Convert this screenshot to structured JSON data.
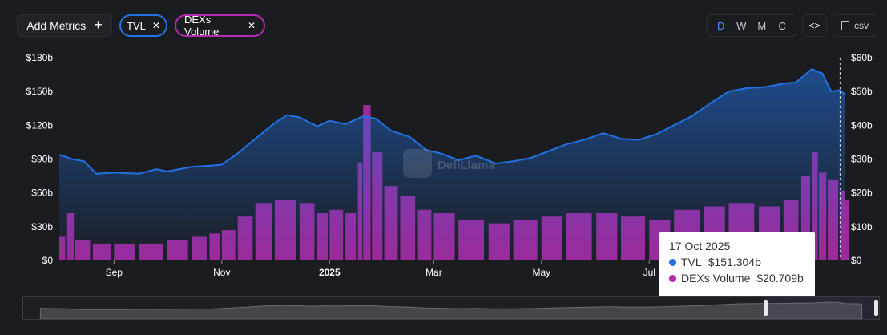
{
  "toolbar": {
    "add_metrics_label": "Add Metrics",
    "chips": [
      {
        "label": "TVL",
        "color": "#2172e5"
      },
      {
        "label": "DEXs Volume",
        "color": "#b32bb0"
      }
    ],
    "periods": [
      "D",
      "W",
      "M",
      "C"
    ],
    "active_period": "D",
    "embed_label": "<>",
    "csv_label": ".csv"
  },
  "watermark": "DefiLlama",
  "tooltip": {
    "date": "17 Oct 2025",
    "rows": [
      {
        "name": "TVL",
        "value": "$151.304b",
        "color": "#2172e5"
      },
      {
        "name": "DEXs Volume",
        "value": "$20.709b",
        "color": "#b32bb0"
      }
    ]
  },
  "chart_data": {
    "type": "line",
    "x_ticks": [
      "Sep",
      "Nov",
      "2025",
      "Mar",
      "May",
      "Jul",
      "Sep"
    ],
    "x_range": [
      "2024-08-01",
      "2025-10-20"
    ],
    "y_left": {
      "ticks": [
        "$0",
        "$30b",
        "$60b",
        "$90b",
        "$120b",
        "$150b",
        "$180b"
      ],
      "range": [
        0,
        180
      ]
    },
    "y_right": {
      "ticks": [
        "$0",
        "$10b",
        "$20b",
        "$30b",
        "$40b",
        "$50b",
        "$60b"
      ],
      "range": [
        0,
        60
      ]
    },
    "grid": false,
    "series": [
      {
        "name": "TVL",
        "type": "area",
        "axis": "left",
        "color": "#2172e5",
        "unit": "billion USD",
        "points": [
          [
            "2024-08-01",
            94
          ],
          [
            "2024-08-08",
            90
          ],
          [
            "2024-08-15",
            88
          ],
          [
            "2024-08-22",
            77
          ],
          [
            "2024-09-01",
            78
          ],
          [
            "2024-09-15",
            77
          ],
          [
            "2024-09-25",
            81
          ],
          [
            "2024-10-01",
            79
          ],
          [
            "2024-10-15",
            83
          ],
          [
            "2024-10-25",
            84
          ],
          [
            "2024-11-01",
            85
          ],
          [
            "2024-11-10",
            95
          ],
          [
            "2024-11-20",
            108
          ],
          [
            "2024-12-01",
            122
          ],
          [
            "2024-12-08",
            129
          ],
          [
            "2024-12-15",
            127
          ],
          [
            "2024-12-25",
            119
          ],
          [
            "2025-01-01",
            124
          ],
          [
            "2025-01-10",
            121
          ],
          [
            "2025-01-20",
            128
          ],
          [
            "2025-01-27",
            126
          ],
          [
            "2025-02-05",
            115
          ],
          [
            "2025-02-15",
            110
          ],
          [
            "2025-02-25",
            98
          ],
          [
            "2025-03-05",
            95
          ],
          [
            "2025-03-15",
            89
          ],
          [
            "2025-03-25",
            93
          ],
          [
            "2025-04-05",
            86
          ],
          [
            "2025-04-15",
            88
          ],
          [
            "2025-04-25",
            91
          ],
          [
            "2025-05-05",
            97
          ],
          [
            "2025-05-15",
            103
          ],
          [
            "2025-05-25",
            107
          ],
          [
            "2025-06-05",
            113
          ],
          [
            "2025-06-15",
            108
          ],
          [
            "2025-06-25",
            107
          ],
          [
            "2025-07-05",
            112
          ],
          [
            "2025-07-15",
            120
          ],
          [
            "2025-07-25",
            128
          ],
          [
            "2025-08-05",
            140
          ],
          [
            "2025-08-15",
            150
          ],
          [
            "2025-08-25",
            153
          ],
          [
            "2025-09-05",
            154
          ],
          [
            "2025-09-15",
            157
          ],
          [
            "2025-09-22",
            158
          ],
          [
            "2025-10-01",
            170
          ],
          [
            "2025-10-07",
            166
          ],
          [
            "2025-10-12",
            150
          ],
          [
            "2025-10-17",
            151.3
          ],
          [
            "2025-10-20",
            147
          ]
        ]
      },
      {
        "name": "DEXs Volume",
        "type": "bar",
        "axis": "right",
        "color": "#b32bb0",
        "unit": "billion USD",
        "points": [
          [
            "2024-08-01",
            7
          ],
          [
            "2024-08-05",
            14
          ],
          [
            "2024-08-10",
            6
          ],
          [
            "2024-08-20",
            5
          ],
          [
            "2024-09-01",
            5
          ],
          [
            "2024-09-15",
            5
          ],
          [
            "2024-10-01",
            6
          ],
          [
            "2024-10-15",
            7
          ],
          [
            "2024-10-25",
            8
          ],
          [
            "2024-11-01",
            9
          ],
          [
            "2024-11-10",
            13
          ],
          [
            "2024-11-20",
            17
          ],
          [
            "2024-12-01",
            18
          ],
          [
            "2024-12-15",
            17
          ],
          [
            "2024-12-25",
            14
          ],
          [
            "2025-01-01",
            15
          ],
          [
            "2025-01-10",
            14
          ],
          [
            "2025-01-17",
            29
          ],
          [
            "2025-01-20",
            46
          ],
          [
            "2025-01-25",
            32
          ],
          [
            "2025-02-01",
            22
          ],
          [
            "2025-02-10",
            19
          ],
          [
            "2025-02-20",
            15
          ],
          [
            "2025-03-01",
            14
          ],
          [
            "2025-03-15",
            12
          ],
          [
            "2025-04-01",
            11
          ],
          [
            "2025-04-15",
            12
          ],
          [
            "2025-05-01",
            13
          ],
          [
            "2025-05-15",
            14
          ],
          [
            "2025-06-01",
            14
          ],
          [
            "2025-06-15",
            13
          ],
          [
            "2025-07-01",
            12
          ],
          [
            "2025-07-15",
            15
          ],
          [
            "2025-08-01",
            16
          ],
          [
            "2025-08-15",
            17
          ],
          [
            "2025-09-01",
            16
          ],
          [
            "2025-09-15",
            18
          ],
          [
            "2025-09-25",
            25
          ],
          [
            "2025-10-01",
            32
          ],
          [
            "2025-10-05",
            26
          ],
          [
            "2025-10-10",
            24
          ],
          [
            "2025-10-17",
            20.7
          ],
          [
            "2025-10-20",
            18
          ]
        ]
      }
    ],
    "crosshair_date": "2025-10-17"
  }
}
